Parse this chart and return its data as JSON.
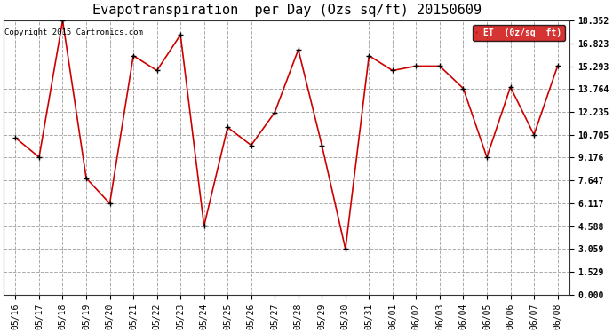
{
  "title": "Evapotranspiration  per Day (Ozs sq/ft) 20150609",
  "copyright": "Copyright 2015 Cartronics.com",
  "legend_label": "ET  (0z/sq  ft)",
  "x_labels": [
    "05/16",
    "05/17",
    "05/18",
    "05/19",
    "05/20",
    "05/21",
    "05/22",
    "05/23",
    "05/24",
    "05/25",
    "05/26",
    "05/27",
    "05/28",
    "05/29",
    "05/30",
    "05/31",
    "06/01",
    "06/02",
    "06/03",
    "06/04",
    "06/05",
    "06/06",
    "06/07",
    "06/08"
  ],
  "y_values": [
    10.5,
    9.2,
    18.35,
    7.8,
    6.1,
    16.0,
    15.0,
    17.4,
    4.6,
    11.2,
    10.0,
    12.2,
    16.4,
    10.0,
    3.05,
    16.0,
    15.0,
    15.3,
    15.3,
    13.8,
    9.2,
    13.9,
    10.7,
    15.3
  ],
  "y_ticks": [
    0.0,
    1.529,
    3.059,
    4.588,
    6.117,
    7.647,
    9.176,
    10.705,
    12.235,
    13.764,
    15.293,
    16.823,
    18.352
  ],
  "line_color": "#CC0000",
  "marker_color": "#000000",
  "background_color": "#ffffff",
  "grid_color": "#AAAAAA",
  "legend_bg": "#CC0000",
  "legend_text_color": "#ffffff",
  "title_fontsize": 11,
  "copyright_fontsize": 6.5,
  "tick_fontsize": 7,
  "ylim": [
    0.0,
    18.352
  ],
  "fig_width": 6.9,
  "fig_height": 3.75,
  "fig_dpi": 100
}
